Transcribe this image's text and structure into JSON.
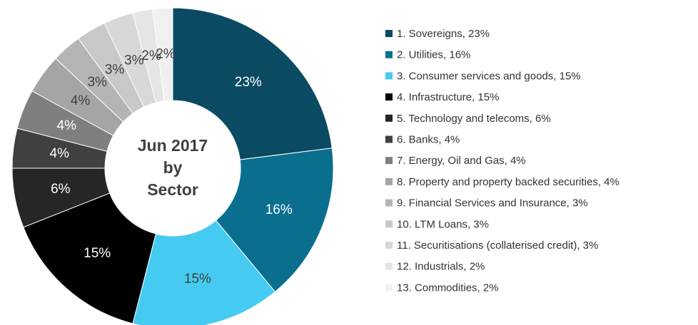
{
  "chart_data": {
    "type": "donut",
    "title": [
      "Jun 2017",
      "by",
      "Sector"
    ],
    "categories": [
      "1. Sovereigns, 23%",
      "2. Utilities, 16%",
      "3. Consumer services and goods, 15%",
      "4. Infrastructure, 15%",
      "5. Technology and telecoms, 6%",
      "6. Banks, 4%",
      "7. Energy, Oil and Gas, 4%",
      "8. Property and property backed securities, 4%",
      "9. Financial Services and Insurance, 3%",
      "10. LTM Loans, 3%",
      "11. Securitisations (collaterised credit), 3%",
      "12. Industrials, 2%",
      "13. Commodities, 2%"
    ],
    "values": [
      23,
      16,
      15,
      15,
      6,
      4,
      4,
      4,
      3,
      3,
      3,
      2,
      2
    ],
    "value_labels": [
      "23%",
      "16%",
      "15%",
      "15%",
      "6%",
      "4%",
      "4%",
      "4%",
      "3%",
      "3%",
      "3%",
      "2%",
      "2%"
    ],
    "colors": [
      "#0b4a63",
      "#0a6e8e",
      "#45cbf2",
      "#000000",
      "#262626",
      "#404040",
      "#7f7f7f",
      "#a5a5a5",
      "#b4b4b4",
      "#c8c8c8",
      "#d8d8d8",
      "#e5e5e5",
      "#f0f0f0"
    ],
    "legend": "right"
  }
}
